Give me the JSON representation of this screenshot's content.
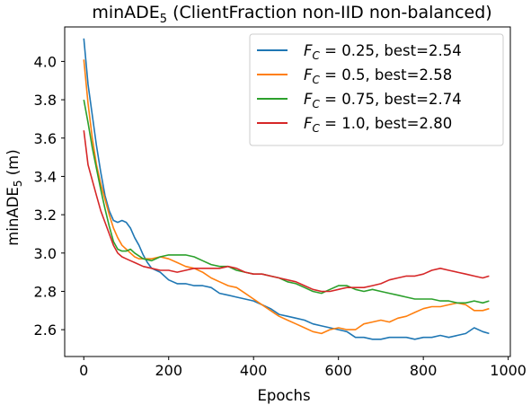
{
  "chart_data": {
    "type": "line",
    "title_main": "minADE",
    "title_sub": "5",
    "title_rest": " (ClientFraction non-IID non-balanced)",
    "xlabel": "Epochs",
    "ylabel_main": "minADE",
    "ylabel_sub": "5",
    "ylabel_rest": " (m)",
    "xlim": [
      -45,
      1005
    ],
    "ylim": [
      2.46,
      4.18
    ],
    "xticks": [
      0,
      200,
      400,
      600,
      800,
      1000
    ],
    "yticks": [
      2.6,
      2.8,
      3.0,
      3.2,
      3.4,
      3.6,
      3.8,
      4.0
    ],
    "x_tick_labels": [
      "0",
      "200",
      "400",
      "600",
      "800",
      "1000"
    ],
    "y_tick_labels": [
      "2.6",
      "2.8",
      "3.0",
      "3.2",
      "3.4",
      "3.6",
      "3.8",
      "4.0"
    ],
    "grid": false,
    "legend_position": "top-right",
    "legend_prefix": "F",
    "legend_prefix_sub": "C",
    "series": [
      {
        "name_rest": " = 0.25, best=2.54",
        "color": "#1f77b4",
        "x": [
          0,
          10,
          20,
          30,
          40,
          50,
          60,
          70,
          80,
          90,
          100,
          110,
          120,
          130,
          140,
          150,
          160,
          180,
          200,
          220,
          240,
          260,
          280,
          300,
          320,
          340,
          360,
          380,
          400,
          420,
          440,
          460,
          480,
          500,
          520,
          540,
          560,
          580,
          600,
          620,
          640,
          660,
          680,
          700,
          720,
          740,
          760,
          780,
          800,
          820,
          840,
          860,
          880,
          900,
          920,
          940,
          955
        ],
        "y": [
          4.12,
          3.88,
          3.72,
          3.56,
          3.42,
          3.3,
          3.22,
          3.17,
          3.16,
          3.17,
          3.16,
          3.13,
          3.08,
          3.04,
          2.99,
          2.95,
          2.92,
          2.9,
          2.86,
          2.84,
          2.84,
          2.83,
          2.83,
          2.82,
          2.79,
          2.78,
          2.77,
          2.76,
          2.75,
          2.73,
          2.71,
          2.68,
          2.67,
          2.66,
          2.65,
          2.63,
          2.62,
          2.61,
          2.6,
          2.59,
          2.56,
          2.56,
          2.55,
          2.55,
          2.56,
          2.56,
          2.56,
          2.55,
          2.56,
          2.56,
          2.57,
          2.56,
          2.57,
          2.58,
          2.61,
          2.59,
          2.58
        ]
      },
      {
        "name_rest": " = 0.5, best=2.58",
        "color": "#ff7f0e",
        "x": [
          0,
          10,
          20,
          30,
          40,
          50,
          60,
          70,
          80,
          90,
          100,
          110,
          120,
          130,
          140,
          160,
          180,
          200,
          220,
          240,
          260,
          280,
          300,
          320,
          340,
          360,
          380,
          400,
          420,
          440,
          460,
          480,
          500,
          520,
          540,
          560,
          580,
          600,
          620,
          640,
          660,
          680,
          700,
          720,
          740,
          760,
          780,
          800,
          820,
          840,
          860,
          880,
          900,
          920,
          940,
          955
        ],
        "y": [
          4.01,
          3.78,
          3.6,
          3.46,
          3.36,
          3.28,
          3.2,
          3.13,
          3.08,
          3.04,
          3.02,
          3.0,
          2.98,
          2.97,
          2.97,
          2.97,
          2.98,
          2.97,
          2.95,
          2.93,
          2.92,
          2.9,
          2.87,
          2.85,
          2.83,
          2.82,
          2.79,
          2.76,
          2.73,
          2.7,
          2.67,
          2.65,
          2.63,
          2.61,
          2.59,
          2.58,
          2.6,
          2.61,
          2.6,
          2.6,
          2.63,
          2.64,
          2.65,
          2.64,
          2.66,
          2.67,
          2.69,
          2.71,
          2.72,
          2.72,
          2.73,
          2.74,
          2.73,
          2.7,
          2.7,
          2.71
        ]
      },
      {
        "name_rest": " = 0.75, best=2.74",
        "color": "#2ca02c",
        "x": [
          0,
          10,
          20,
          30,
          40,
          50,
          60,
          70,
          80,
          90,
          100,
          110,
          120,
          140,
          160,
          180,
          200,
          220,
          240,
          260,
          280,
          300,
          320,
          340,
          360,
          380,
          400,
          420,
          440,
          460,
          480,
          500,
          520,
          540,
          560,
          580,
          600,
          620,
          640,
          660,
          680,
          700,
          720,
          740,
          760,
          780,
          800,
          820,
          840,
          860,
          880,
          900,
          920,
          940,
          955
        ],
        "y": [
          3.8,
          3.68,
          3.55,
          3.44,
          3.33,
          3.23,
          3.14,
          3.06,
          3.02,
          3.01,
          3.01,
          3.02,
          3.0,
          2.97,
          2.96,
          2.98,
          2.99,
          2.99,
          2.99,
          2.98,
          2.96,
          2.94,
          2.93,
          2.93,
          2.91,
          2.9,
          2.89,
          2.89,
          2.88,
          2.87,
          2.85,
          2.84,
          2.82,
          2.8,
          2.79,
          2.81,
          2.83,
          2.83,
          2.81,
          2.8,
          2.81,
          2.8,
          2.79,
          2.78,
          2.77,
          2.76,
          2.76,
          2.76,
          2.75,
          2.75,
          2.74,
          2.74,
          2.75,
          2.74,
          2.75
        ]
      },
      {
        "name_rest": " = 1.0, best=2.80",
        "color": "#d62728",
        "x": [
          0,
          10,
          20,
          30,
          40,
          50,
          60,
          70,
          80,
          90,
          100,
          110,
          120,
          140,
          160,
          180,
          200,
          220,
          240,
          260,
          280,
          300,
          320,
          340,
          360,
          380,
          400,
          420,
          440,
          460,
          480,
          500,
          520,
          540,
          560,
          580,
          600,
          620,
          640,
          660,
          680,
          700,
          720,
          740,
          760,
          780,
          800,
          820,
          840,
          860,
          880,
          900,
          920,
          940,
          955
        ],
        "y": [
          3.64,
          3.46,
          3.38,
          3.3,
          3.22,
          3.16,
          3.1,
          3.04,
          3.0,
          2.98,
          2.97,
          2.96,
          2.95,
          2.93,
          2.92,
          2.91,
          2.91,
          2.9,
          2.91,
          2.92,
          2.92,
          2.92,
          2.92,
          2.93,
          2.92,
          2.9,
          2.89,
          2.89,
          2.88,
          2.87,
          2.86,
          2.85,
          2.83,
          2.81,
          2.8,
          2.8,
          2.81,
          2.82,
          2.82,
          2.82,
          2.83,
          2.84,
          2.86,
          2.87,
          2.88,
          2.88,
          2.89,
          2.91,
          2.92,
          2.91,
          2.9,
          2.89,
          2.88,
          2.87,
          2.88
        ]
      }
    ]
  }
}
